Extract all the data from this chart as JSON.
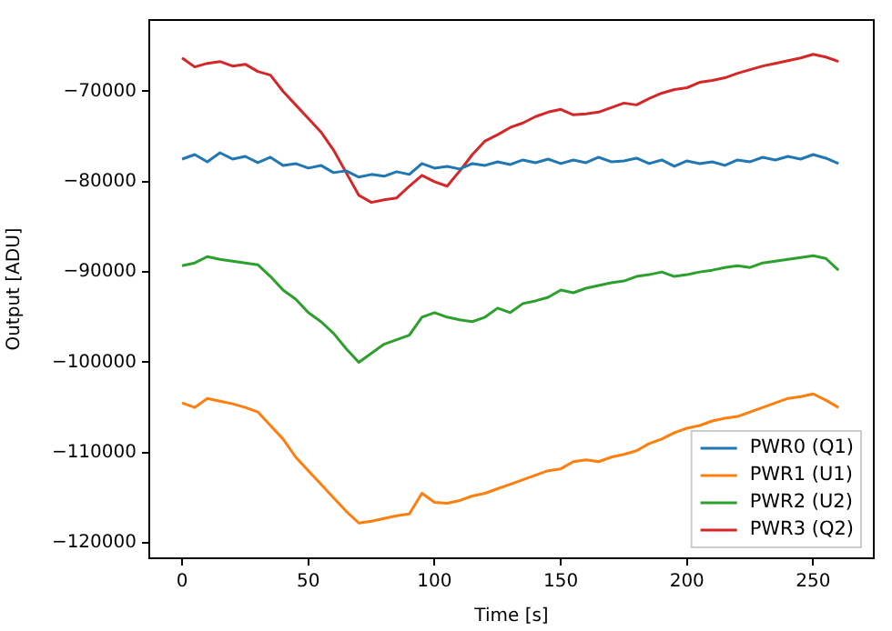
{
  "chart_data": {
    "type": "line",
    "xlabel": "Time [s]",
    "ylabel": "Output [ADU]",
    "x": [
      0,
      5,
      10,
      15,
      20,
      25,
      30,
      35,
      40,
      45,
      50,
      55,
      60,
      65,
      70,
      75,
      80,
      85,
      90,
      95,
      100,
      105,
      110,
      115,
      120,
      125,
      130,
      135,
      140,
      145,
      150,
      155,
      160,
      165,
      170,
      175,
      180,
      185,
      190,
      195,
      200,
      205,
      210,
      215,
      220,
      225,
      230,
      235,
      240,
      245,
      250,
      255,
      260
    ],
    "series": [
      {
        "name": "PWR0 (Q1)",
        "color": "#1f77b4",
        "values": [
          -77500,
          -77000,
          -77800,
          -76800,
          -77500,
          -77200,
          -77900,
          -77300,
          -78200,
          -78000,
          -78500,
          -78200,
          -79000,
          -78800,
          -79500,
          -79200,
          -79400,
          -78900,
          -79200,
          -78000,
          -78500,
          -78300,
          -78600,
          -78000,
          -78200,
          -77800,
          -78100,
          -77600,
          -77900,
          -77500,
          -78000,
          -77600,
          -77900,
          -77300,
          -77800,
          -77700,
          -77400,
          -78000,
          -77600,
          -78300,
          -77700,
          -78000,
          -77800,
          -78200,
          -77600,
          -77800,
          -77300,
          -77600,
          -77200,
          -77500,
          -77000,
          -77400,
          -78000
        ]
      },
      {
        "name": "PWR1 (U1)",
        "color": "#ff7f0e",
        "values": [
          -104500,
          -105000,
          -104000,
          -104300,
          -104600,
          -105000,
          -105500,
          -107000,
          -108500,
          -110500,
          -112000,
          -113500,
          -115000,
          -116500,
          -117800,
          -117600,
          -117300,
          -117000,
          -116800,
          -114500,
          -115500,
          -115600,
          -115300,
          -114800,
          -114500,
          -114000,
          -113500,
          -113000,
          -112500,
          -112000,
          -111800,
          -111000,
          -110800,
          -111000,
          -110500,
          -110200,
          -109800,
          -109000,
          -108500,
          -107800,
          -107300,
          -107000,
          -106500,
          -106200,
          -106000,
          -105500,
          -105000,
          -104500,
          -104000,
          -103800,
          -103500,
          -104200,
          -105000
        ]
      },
      {
        "name": "PWR2 (U2)",
        "color": "#2ca02c",
        "values": [
          -89300,
          -89000,
          -88300,
          -88600,
          -88800,
          -89000,
          -89200,
          -90500,
          -92000,
          -93000,
          -94500,
          -95500,
          -96800,
          -98500,
          -100000,
          -99000,
          -98000,
          -97500,
          -97000,
          -95000,
          -94500,
          -95000,
          -95300,
          -95500,
          -95000,
          -94000,
          -94500,
          -93500,
          -93200,
          -92800,
          -92000,
          -92300,
          -91800,
          -91500,
          -91200,
          -91000,
          -90500,
          -90300,
          -90000,
          -90500,
          -90300,
          -90000,
          -89800,
          -89500,
          -89300,
          -89500,
          -89000,
          -88800,
          -88600,
          -88400,
          -88200,
          -88500,
          -89800
        ]
      },
      {
        "name": "PWR3 (Q2)",
        "color": "#d62728",
        "values": [
          -66300,
          -67300,
          -66900,
          -66700,
          -67200,
          -67000,
          -67800,
          -68200,
          -70000,
          -71500,
          -73000,
          -74500,
          -76500,
          -79000,
          -81500,
          -82300,
          -82000,
          -81800,
          -80500,
          -79300,
          -80000,
          -80500,
          -78800,
          -77000,
          -75500,
          -74800,
          -74000,
          -73500,
          -72800,
          -72300,
          -72000,
          -72600,
          -72500,
          -72300,
          -71800,
          -71300,
          -71500,
          -70800,
          -70200,
          -69800,
          -69600,
          -69000,
          -68800,
          -68500,
          -68000,
          -67600,
          -67200,
          -66900,
          -66600,
          -66300,
          -65900,
          -66200,
          -66700
        ]
      }
    ],
    "xlim": [
      -13,
      274
    ],
    "xticks": [
      0,
      50,
      100,
      150,
      200,
      250
    ],
    "ylim": [
      -121700,
      -62100
    ],
    "yticks": [
      {
        "value": -120000,
        "label": "−120000"
      },
      {
        "value": -110000,
        "label": "−110000"
      },
      {
        "value": -100000,
        "label": "−100000"
      },
      {
        "value": -90000,
        "label": "−90000"
      },
      {
        "value": -80000,
        "label": "−80000"
      },
      {
        "value": -70000,
        "label": "−70000"
      }
    ],
    "grid": false,
    "legend": "bottom right",
    "marker": "none",
    "line_style": "solid"
  }
}
